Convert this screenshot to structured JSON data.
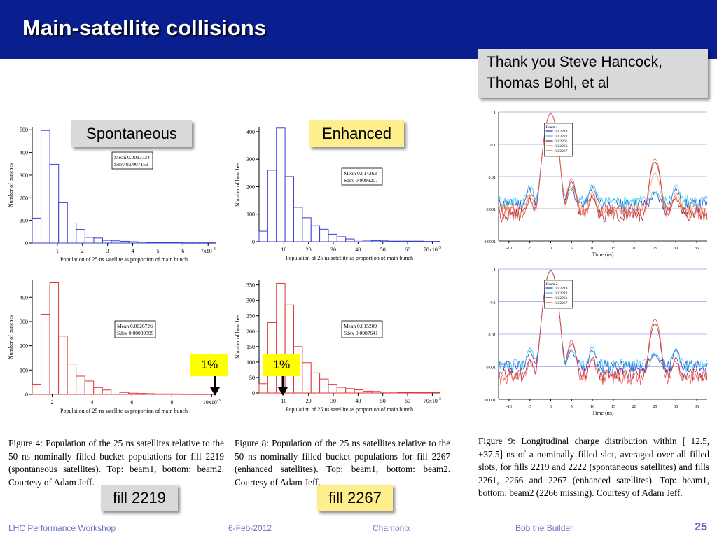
{
  "slide": {
    "title": "Main-satellite collisions",
    "thanks": "Thank you Steve Hancock, Thomas Bohl, et al",
    "label_spontaneous": "Spontaneous",
    "label_enhanced": "Enhanced",
    "pct_left": "1%",
    "pct_right": "1%",
    "fill_left": "fill 2219",
    "fill_right": "fill 2267"
  },
  "captions": {
    "fig4": "Figure 4:  Population of the 25 ns satellites relative to the 50 ns nominally filled bucket populations for fill 2219 (spontaneous satellites).  Top:  beam1, bottom:  beam2. Courtesy of Adam Jeff.",
    "fig8": "Figure 8: Population of the 25 ns satellites relative to the 50 ns nominally filled bucket populations for fill 2267 (enhanced satellites). Top: beam1, bottom: beam2. Courtesy of Adam Jeff.",
    "fig9": "Figure 9:    Longitudinal charge distribution within [−12.5, +37.5] ns of a nominally filled slot, averaged over all filled slots, for fills 2219 and 2222 (spontaneous satellites) and fills 2261, 2266 and 2267 (enhanced satellites). Top: beam1, bottom: beam2 (2266 missing).  Courtesy of Adam Jeff."
  },
  "footer": {
    "workshop": "LHC Performance Workshop",
    "date": "6-Feb-2012",
    "place": "Chamonix",
    "author": "Bob the Builder",
    "page": "25"
  },
  "colors": {
    "title_bar": "#0a1f8f",
    "beam1_hist": "#3b3fd0",
    "beam2_hist": "#e03535",
    "callout_gray": "#d9d9d9",
    "callout_yellow": "#ffef8c",
    "pct_box": "#ffff00"
  },
  "chart_data": [
    {
      "type": "bar",
      "id": "hist_2219_beam1",
      "color": "#3b3fd0",
      "ylabel": "Number of bunches",
      "xlabel": "Population of 25 ns satellite as proportion of main bunch",
      "xlim": [
        0,
        7.3
      ],
      "ylim": [
        0,
        510
      ],
      "xticks": [
        1,
        2,
        3,
        4,
        5,
        6,
        7
      ],
      "xtick_labels": [
        "1",
        "2",
        "3",
        "4",
        "5",
        "6",
        "7x10-3"
      ],
      "yticks": [
        0,
        100,
        200,
        300,
        400,
        500
      ],
      "bin_start": 0,
      "bin_width": 0.35,
      "values": [
        110,
        497,
        348,
        178,
        88,
        60,
        25,
        22,
        12,
        10,
        8,
        6,
        4,
        3,
        3,
        2,
        2,
        1,
        1,
        1,
        1
      ],
      "stats": {
        "mean": "Mean 0.0013724",
        "sdev": "Sdev 0.0007159"
      }
    },
    {
      "type": "bar",
      "id": "hist_2267_beam1",
      "color": "#3b3fd0",
      "ylabel": "Number of bunches",
      "xlabel": "Population of 25 ns satellite as proportion of main bunch",
      "xlim": [
        0,
        73
      ],
      "ylim": [
        0,
        415
      ],
      "xticks": [
        10,
        20,
        30,
        40,
        50,
        60,
        70
      ],
      "xtick_labels": [
        "10",
        "20",
        "30",
        "40",
        "50",
        "60",
        "70x10-3"
      ],
      "yticks": [
        0,
        100,
        200,
        300,
        400
      ],
      "bin_start": 0,
      "bin_width": 3.5,
      "values": [
        38,
        260,
        413,
        237,
        125,
        87,
        58,
        45,
        27,
        18,
        10,
        6,
        5,
        4,
        3,
        2,
        2,
        2,
        2,
        1,
        1
      ],
      "stats": {
        "mean": "Mean 0.014263",
        "sdev": "Sdev 0.0093207"
      }
    },
    {
      "type": "bar",
      "id": "hist_2219_beam2",
      "color": "#e03535",
      "ylabel": "Number of bunches",
      "xlabel": "Population of 25 ns satellite as proportion of main bunch",
      "xlim": [
        1.0,
        10.2
      ],
      "ylim": [
        0,
        470
      ],
      "xticks": [
        2,
        4,
        6,
        8,
        10
      ],
      "xtick_labels": [
        "2",
        "4",
        "6",
        "8",
        "10x10-3"
      ],
      "yticks": [
        0,
        100,
        200,
        300,
        400
      ],
      "bin_start": 1.0,
      "bin_width": 0.44,
      "values": [
        42,
        330,
        460,
        240,
        125,
        75,
        55,
        28,
        18,
        10,
        8,
        5,
        4,
        3,
        2,
        2,
        2,
        1,
        1,
        1,
        1
      ],
      "stats": {
        "mean": "Mean 0.0026726",
        "sdev": "Sdev 0.00089309"
      }
    },
    {
      "type": "bar",
      "id": "hist_2267_beam2",
      "color": "#e03535",
      "ylabel": "Number of bunches",
      "xlabel": "Population of 25 ns satellite as proportion of main bunch",
      "xlim": [
        0,
        73
      ],
      "ylim": [
        0,
        365
      ],
      "xticks": [
        10,
        20,
        30,
        40,
        50,
        60,
        70
      ],
      "xtick_labels": [
        "10",
        "20",
        "30",
        "40",
        "50",
        "60",
        "70x10-3"
      ],
      "yticks": [
        0,
        50,
        100,
        150,
        200,
        250,
        300,
        350
      ],
      "bin_start": 0,
      "bin_width": 3.5,
      "values": [
        30,
        228,
        355,
        285,
        150,
        98,
        65,
        45,
        28,
        18,
        14,
        10,
        6,
        5,
        3,
        3,
        2,
        2,
        1,
        1,
        1
      ],
      "stats": {
        "mean": "Mean 0.015209",
        "sdev": "Sdev 0.0087641"
      }
    },
    {
      "type": "line",
      "id": "profile_beam1",
      "scale": "log",
      "xlabel": "Time (ns)",
      "xlim": [
        -12.5,
        37.5
      ],
      "ylim": [
        0.0001,
        1
      ],
      "xticks": [
        -10,
        -5,
        0,
        5,
        10,
        15,
        20,
        25,
        30,
        35
      ],
      "yticks": [
        0.0001,
        0.001,
        0.01,
        0.1,
        1
      ],
      "ytick_labels": [
        "0.0001",
        "0.001",
        "0.01",
        "0.1",
        "1"
      ],
      "legend_title": "Beam 1",
      "series": [
        {
          "name": "fill 2219",
          "color": "#2a2ad8",
          "satellite": 0.0015,
          "ghost": 0.0014
        },
        {
          "name": "fill 2222",
          "color": "#22c6e8",
          "satellite": 0.0018,
          "ghost": 0.0018
        },
        {
          "name": "fill 2261",
          "color": "#9a1a2a",
          "satellite": 0.028,
          "ghost": 0.0007
        },
        {
          "name": "fill 2266",
          "color": "#f0a040",
          "satellite": 0.012,
          "ghost": 0.001
        },
        {
          "name": "fill 2267",
          "color": "#f04a4a",
          "satellite": 0.035,
          "ghost": 0.0008
        }
      ]
    },
    {
      "type": "line",
      "id": "profile_beam2",
      "scale": "log",
      "xlabel": "Time (ns)",
      "xlim": [
        -12.5,
        37.5
      ],
      "ylim": [
        0.0001,
        1
      ],
      "xticks": [
        -10,
        -5,
        0,
        5,
        10,
        15,
        20,
        25,
        30,
        35
      ],
      "yticks": [
        0.0001,
        0.001,
        0.01,
        0.1,
        1
      ],
      "ytick_labels": [
        "0.0001",
        "0.001",
        "0.01",
        "0.1",
        "1"
      ],
      "legend_title": "Beam 2",
      "series": [
        {
          "name": "fill 2219",
          "color": "#2a2ad8",
          "satellite": 0.0014,
          "ghost": 0.0011
        },
        {
          "name": "fill 2222",
          "color": "#22c6e8",
          "satellite": 0.0016,
          "ghost": 0.0012
        },
        {
          "name": "fill 2261",
          "color": "#9a1a2a",
          "satellite": 0.02,
          "ghost": 0.0006
        },
        {
          "name": "fill 2267",
          "color": "#f04a4a",
          "satellite": 0.028,
          "ghost": 0.0005
        }
      ]
    }
  ]
}
